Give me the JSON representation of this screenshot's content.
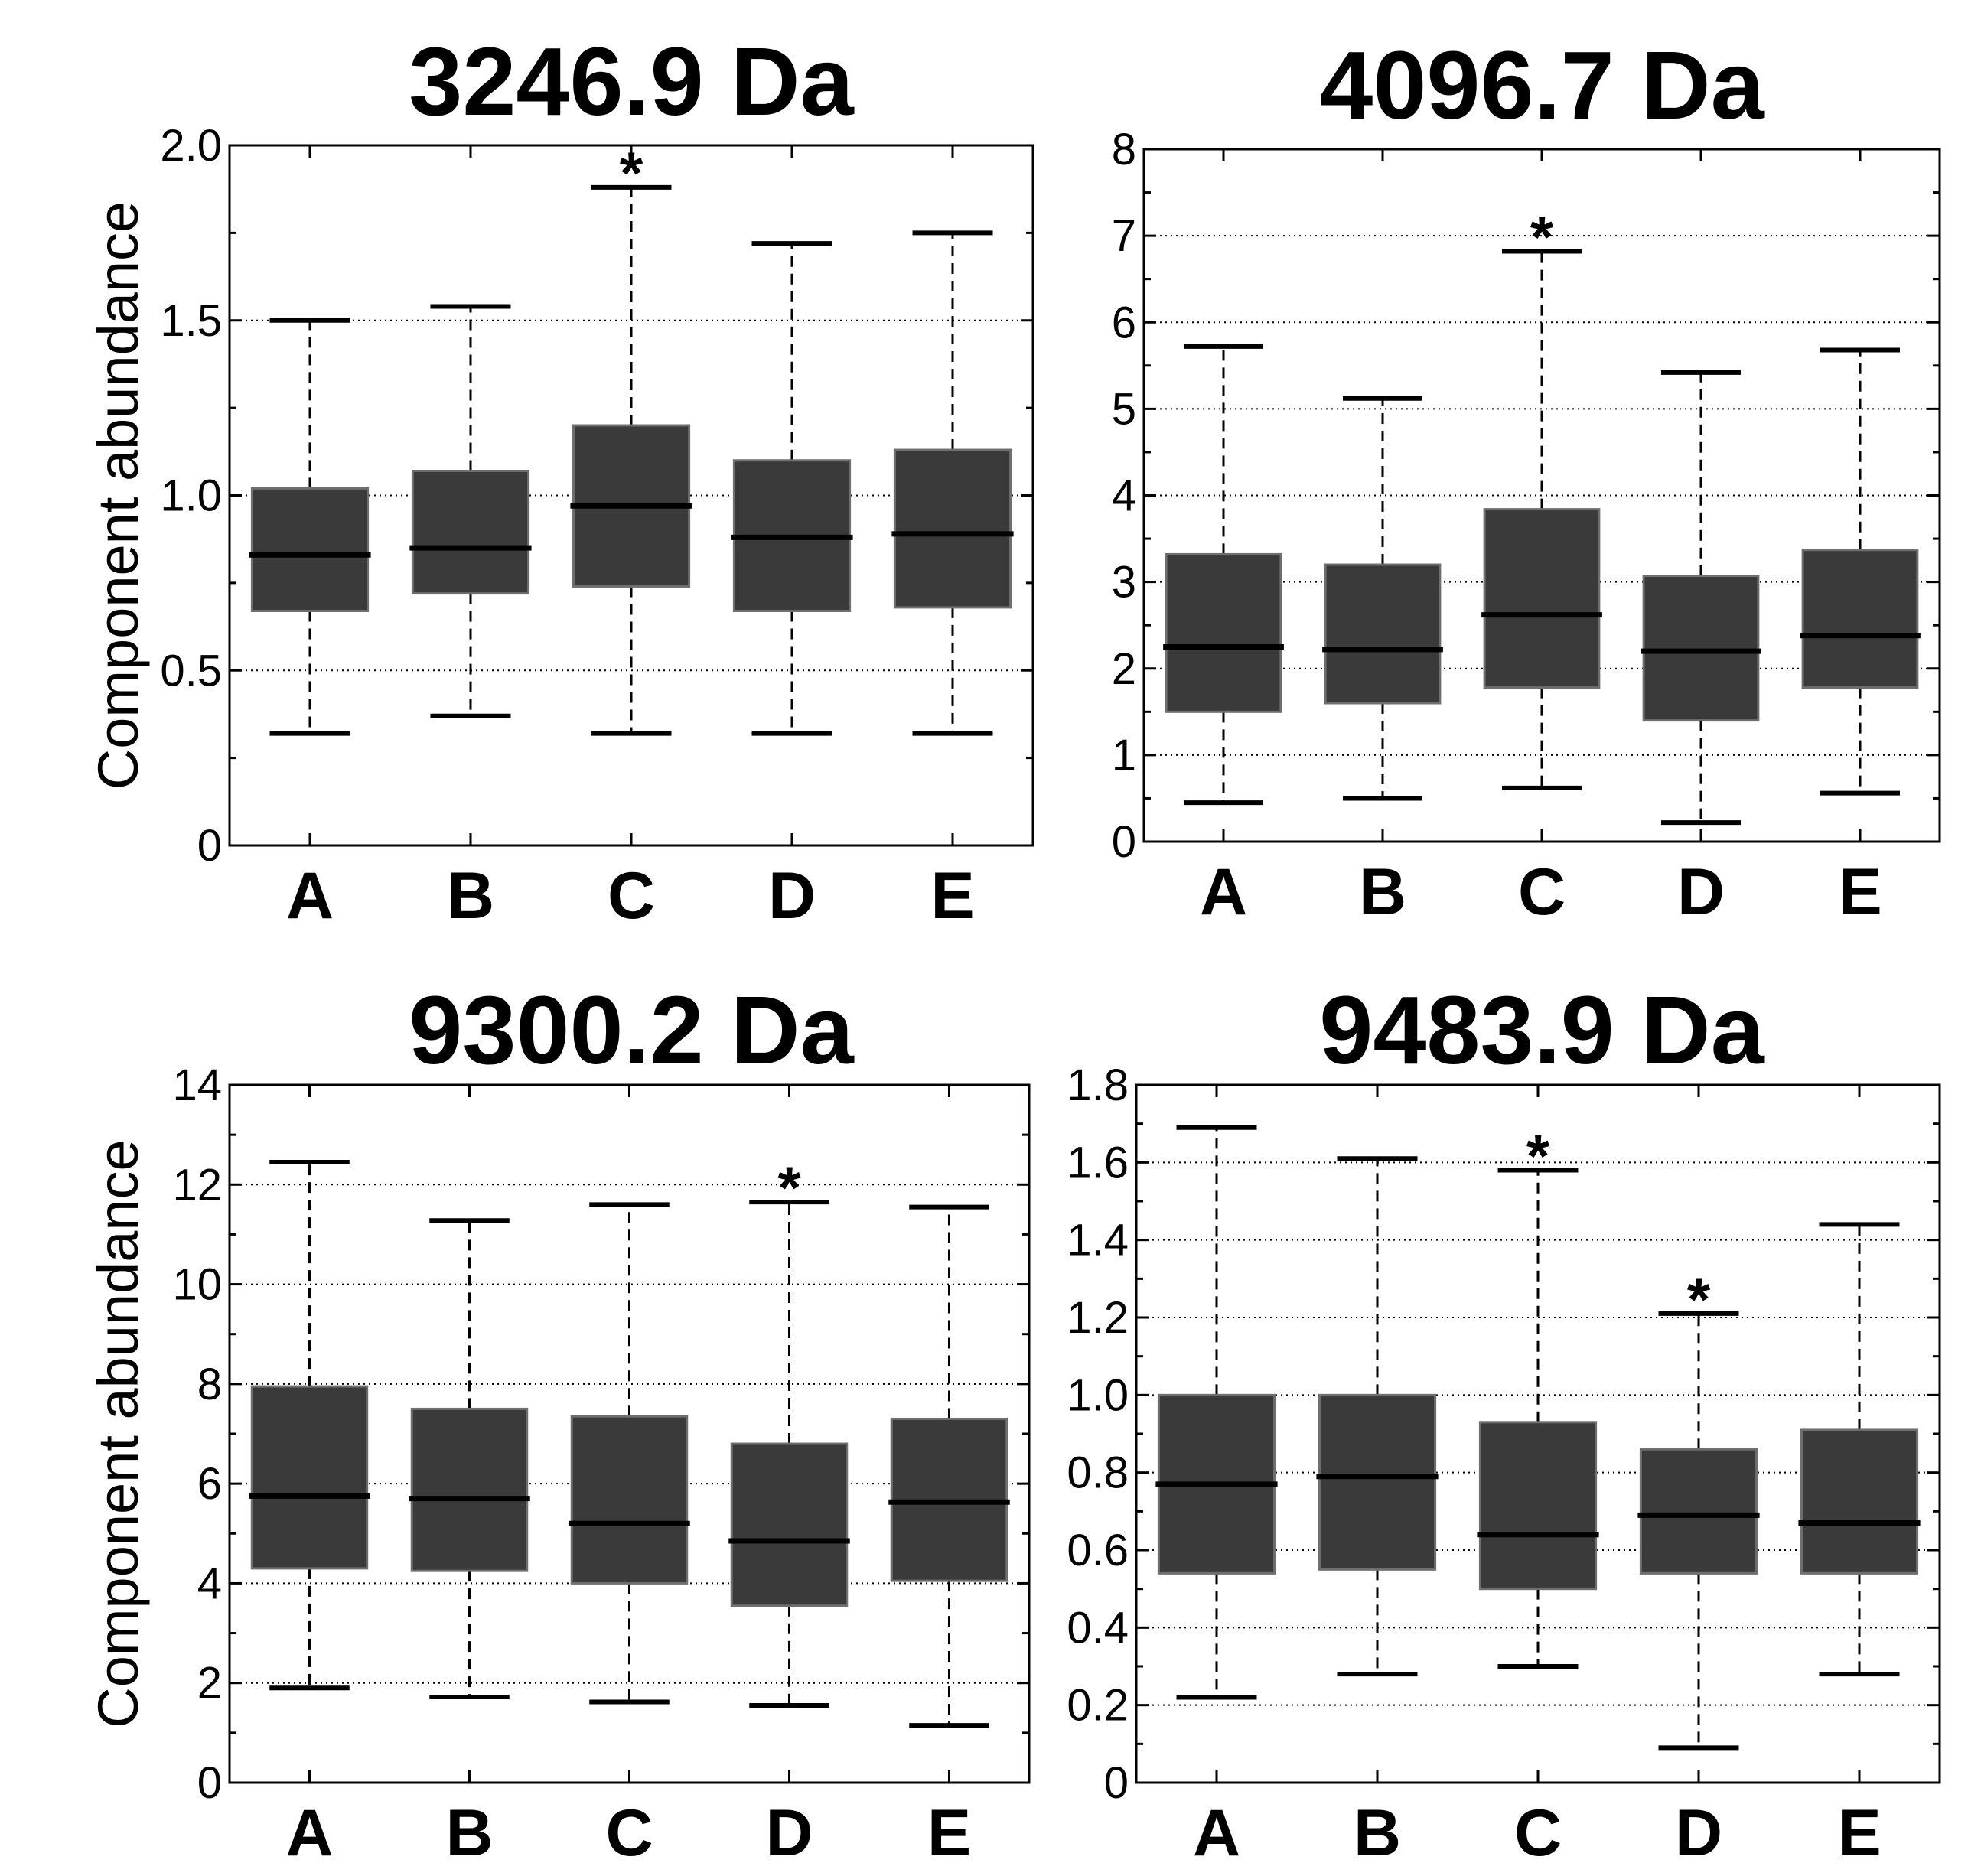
{
  "colors": {
    "box_fill": "#3a3a3a",
    "box_edge": "#6f6f6f",
    "median": "#000000",
    "whisker": "#000000",
    "grid": "#000000",
    "axes": "#000000"
  },
  "chart_data": [
    {
      "type": "boxplot",
      "title": "3246.9 Da",
      "ylabel": "Component abundance",
      "ylim": [
        0,
        2.0
      ],
      "yticks": [
        0,
        0.5,
        1.0,
        1.5,
        2.0
      ],
      "yticklabels": [
        "0",
        "0.5",
        "1.0",
        "1.5",
        "2.0"
      ],
      "grid": true,
      "categories": [
        "A",
        "B",
        "C",
        "D",
        "E"
      ],
      "boxes": [
        {
          "category": "A",
          "min": 0.32,
          "q1": 0.67,
          "median": 0.83,
          "q3": 1.02,
          "max": 1.5,
          "significant": false
        },
        {
          "category": "B",
          "min": 0.37,
          "q1": 0.72,
          "median": 0.85,
          "q3": 1.07,
          "max": 1.54,
          "significant": false
        },
        {
          "category": "C",
          "min": 0.32,
          "q1": 0.74,
          "median": 0.97,
          "q3": 1.2,
          "max": 1.88,
          "significant": true
        },
        {
          "category": "D",
          "min": 0.32,
          "q1": 0.67,
          "median": 0.88,
          "q3": 1.1,
          "max": 1.72,
          "significant": false
        },
        {
          "category": "E",
          "min": 0.32,
          "q1": 0.68,
          "median": 0.89,
          "q3": 1.13,
          "max": 1.75,
          "significant": false
        }
      ],
      "marker": "*"
    },
    {
      "type": "boxplot",
      "title": "4096.7 Da",
      "ylabel": "",
      "ylim": [
        0,
        8
      ],
      "yticks": [
        0,
        1,
        2,
        3,
        4,
        5,
        6,
        7,
        8
      ],
      "yticklabels": [
        "0",
        "1",
        "2",
        "3",
        "4",
        "5",
        "6",
        "7",
        "8"
      ],
      "grid": true,
      "categories": [
        "A",
        "B",
        "C",
        "D",
        "E"
      ],
      "boxes": [
        {
          "category": "A",
          "min": 0.45,
          "q1": 1.5,
          "median": 2.25,
          "q3": 3.32,
          "max": 5.72,
          "significant": false
        },
        {
          "category": "B",
          "min": 0.5,
          "q1": 1.6,
          "median": 2.22,
          "q3": 3.2,
          "max": 5.12,
          "significant": false
        },
        {
          "category": "C",
          "min": 0.62,
          "q1": 1.78,
          "median": 2.62,
          "q3": 3.84,
          "max": 6.82,
          "significant": true
        },
        {
          "category": "D",
          "min": 0.22,
          "q1": 1.4,
          "median": 2.2,
          "q3": 3.07,
          "max": 5.42,
          "significant": false
        },
        {
          "category": "E",
          "min": 0.56,
          "q1": 1.78,
          "median": 2.38,
          "q3": 3.37,
          "max": 5.68,
          "significant": false
        }
      ],
      "marker": "*"
    },
    {
      "type": "boxplot",
      "title": "9300.2 Da",
      "ylabel": "Component abundance",
      "ylim": [
        0,
        14
      ],
      "yticks": [
        0,
        2,
        4,
        6,
        8,
        10,
        12,
        14
      ],
      "yticklabels": [
        "0",
        "2",
        "4",
        "6",
        "8",
        "10",
        "12",
        "14"
      ],
      "grid": true,
      "categories": [
        "A",
        "B",
        "C",
        "D",
        "E"
      ],
      "boxes": [
        {
          "category": "A",
          "min": 1.9,
          "q1": 4.3,
          "median": 5.75,
          "q3": 7.95,
          "max": 12.45,
          "significant": false
        },
        {
          "category": "B",
          "min": 1.72,
          "q1": 4.25,
          "median": 5.7,
          "q3": 7.5,
          "max": 11.28,
          "significant": false
        },
        {
          "category": "C",
          "min": 1.62,
          "q1": 4.0,
          "median": 5.2,
          "q3": 7.35,
          "max": 11.6,
          "significant": false
        },
        {
          "category": "D",
          "min": 1.55,
          "q1": 3.55,
          "median": 4.85,
          "q3": 6.8,
          "max": 11.65,
          "significant": true
        },
        {
          "category": "E",
          "min": 1.15,
          "q1": 4.05,
          "median": 5.63,
          "q3": 7.3,
          "max": 11.55,
          "significant": false
        }
      ],
      "marker": "*"
    },
    {
      "type": "boxplot",
      "title": "9483.9 Da",
      "ylabel": "",
      "ylim": [
        0,
        1.8
      ],
      "yticks": [
        0,
        0.2,
        0.4,
        0.6,
        0.8,
        1.0,
        1.2,
        1.4,
        1.6,
        1.8
      ],
      "yticklabels": [
        "0",
        "0.2",
        "0.4",
        "0.6",
        "0.8",
        "1.0",
        "1.2",
        "1.4",
        "1.6",
        "1.8"
      ],
      "grid": true,
      "categories": [
        "A",
        "B",
        "C",
        "D",
        "E"
      ],
      "boxes": [
        {
          "category": "A",
          "min": 0.22,
          "q1": 0.54,
          "median": 0.77,
          "q3": 1.0,
          "max": 1.69,
          "significant": false
        },
        {
          "category": "B",
          "min": 0.28,
          "q1": 0.55,
          "median": 0.79,
          "q3": 1.0,
          "max": 1.61,
          "significant": false
        },
        {
          "category": "C",
          "min": 0.3,
          "q1": 0.5,
          "median": 0.64,
          "q3": 0.93,
          "max": 1.58,
          "significant": true
        },
        {
          "category": "D",
          "min": 0.09,
          "q1": 0.54,
          "median": 0.69,
          "q3": 0.86,
          "max": 1.21,
          "significant": true
        },
        {
          "category": "E",
          "min": 0.28,
          "q1": 0.54,
          "median": 0.67,
          "q3": 0.91,
          "max": 1.44,
          "significant": false
        }
      ],
      "marker": "*"
    }
  ]
}
